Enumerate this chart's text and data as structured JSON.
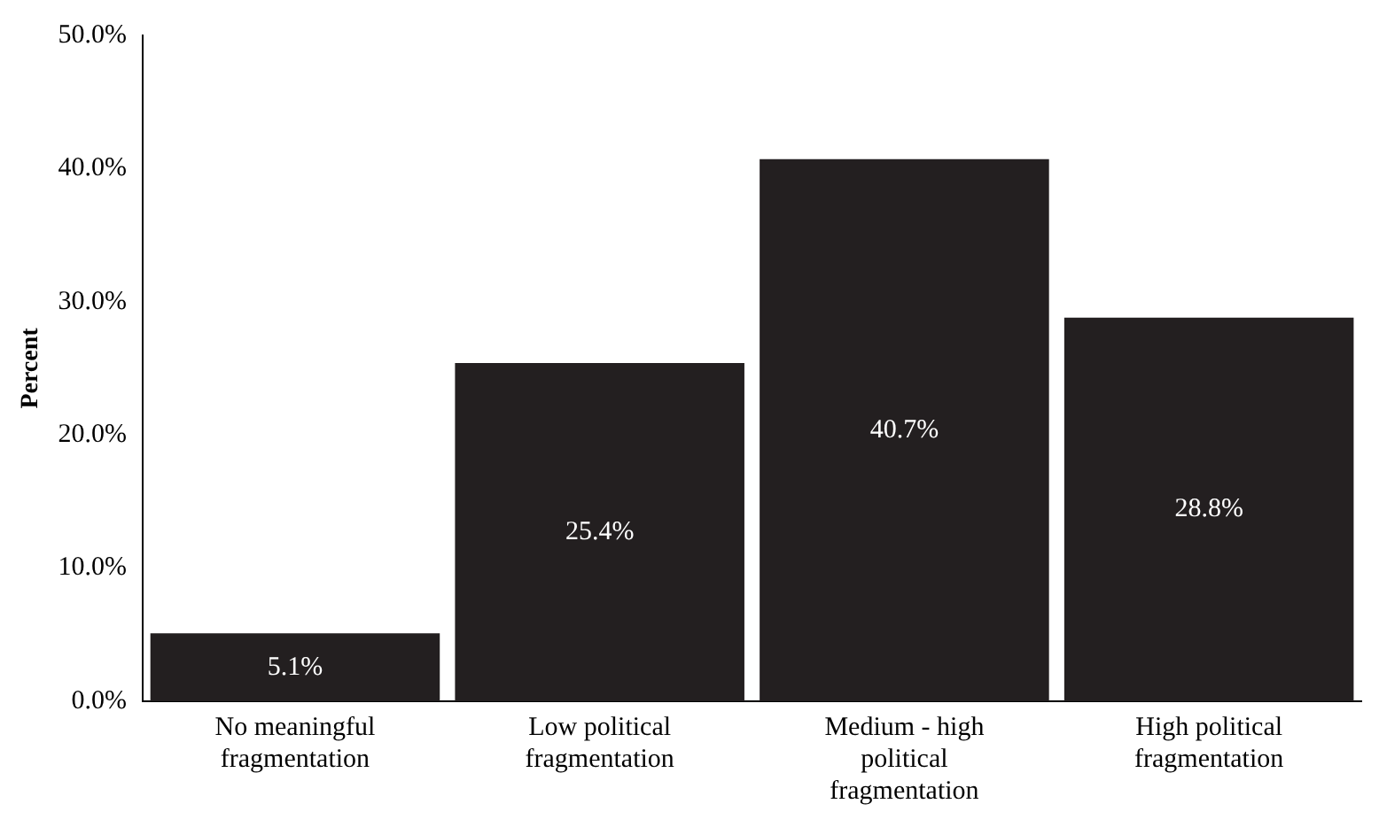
{
  "chart_data": {
    "type": "bar",
    "ylabel": "Percent",
    "categories": [
      "No meaningful fragmentation",
      "Low political fragmentation",
      "Medium - high political fragmentation",
      "High political fragmentation"
    ],
    "values": [
      5.1,
      25.4,
      40.7,
      28.8
    ],
    "value_labels": [
      "5.1%",
      "25.4%",
      "40.7%",
      "28.8%"
    ],
    "color": "#231f20",
    "ylim": [
      0,
      50
    ],
    "yticks": [
      {
        "value": 0,
        "label": "0.0%"
      },
      {
        "value": 10,
        "label": "10.0%"
      },
      {
        "value": 20,
        "label": "20.0%"
      },
      {
        "value": 30,
        "label": "30.0%"
      },
      {
        "value": 40,
        "label": "40.0%"
      },
      {
        "value": 50,
        "label": "50.0%"
      }
    ],
    "grid": false,
    "legend": false
  }
}
